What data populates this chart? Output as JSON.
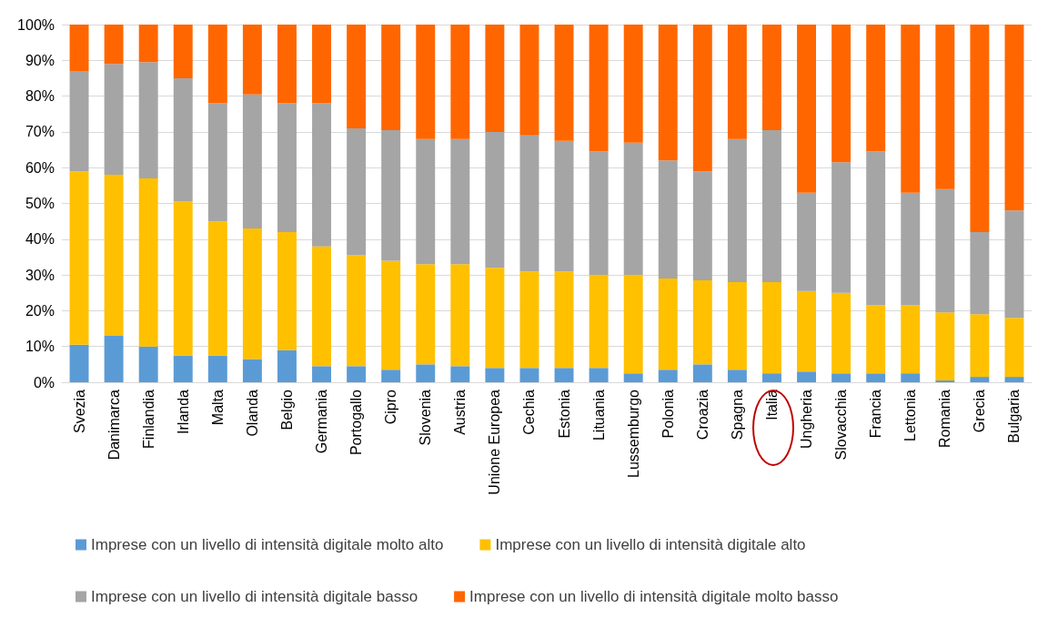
{
  "chart_data": {
    "type": "bar",
    "stacked": true,
    "categories": [
      "Svezia",
      "Danimarca",
      "Finlandia",
      "Irlanda",
      "Malta",
      "Olanda",
      "Belgio",
      "Germania",
      "Portogallo",
      "Cipro",
      "Slovenia",
      "Austria",
      "Unione Europea",
      "Cechia",
      "Estonia",
      "Lituania",
      "Lussemburgo",
      "Polonia",
      "Croazia",
      "Spagna",
      "Italia",
      "Ungheria",
      "Slovacchia",
      "Francia",
      "Lettonia",
      "Romania",
      "Grecia",
      "Bulgaria"
    ],
    "series": [
      {
        "name": "Imprese con un livello di intensità digitale molto alto",
        "color": "#5b9bd5",
        "values": [
          10.5,
          13,
          10,
          7.5,
          7.5,
          6.5,
          9,
          4.5,
          4.5,
          3.5,
          5,
          4.5,
          4,
          4,
          4,
          4,
          2.5,
          3.5,
          5,
          3.5,
          2.5,
          3,
          2.5,
          2.5,
          2.5,
          0.5,
          1.5,
          1.5
        ]
      },
      {
        "name": "Imprese con un livello di intensità digitale alto",
        "color": "#ffc000",
        "values": [
          48.5,
          45,
          47,
          43,
          37.5,
          36.5,
          33,
          33.5,
          31,
          30.5,
          28,
          28.5,
          28,
          27,
          27,
          26,
          27.5,
          25.5,
          23.5,
          24.5,
          25.5,
          22.5,
          22.5,
          19,
          19,
          19,
          17.5,
          16.5
        ]
      },
      {
        "name": "Imprese con un livello di intensità digitale basso",
        "color": "#a5a5a5",
        "values": [
          28,
          31,
          32.5,
          34.5,
          33,
          37.5,
          36,
          40,
          35.5,
          36.5,
          35,
          35,
          38,
          38,
          36.5,
          34.5,
          37,
          33,
          30.5,
          40,
          42.5,
          27.5,
          36.5,
          43,
          31.5,
          34.5,
          23,
          30
        ]
      },
      {
        "name": "Imprese con un livello di intensità digitale molto basso",
        "color": "#ff6600",
        "values": [
          13,
          11,
          10.5,
          15,
          22,
          19.5,
          22,
          22,
          29,
          29.5,
          32,
          32,
          30,
          31,
          32.5,
          35.5,
          33,
          38,
          41,
          32,
          29.5,
          47,
          38.5,
          35.5,
          47,
          46,
          58,
          52
        ]
      }
    ],
    "ylim": [
      0,
      100
    ],
    "yticks": [
      {
        "value": 0,
        "label": "0%"
      },
      {
        "value": 10,
        "label": "10%"
      },
      {
        "value": 20,
        "label": "20%"
      },
      {
        "value": 30,
        "label": "30%"
      },
      {
        "value": 40,
        "label": "40%"
      },
      {
        "value": 50,
        "label": "50%"
      },
      {
        "value": 60,
        "label": "60%"
      },
      {
        "value": 70,
        "label": "70%"
      },
      {
        "value": 80,
        "label": "80%"
      },
      {
        "value": 90,
        "label": "90%"
      },
      {
        "value": 100,
        "label": "100%"
      }
    ],
    "grid": "y",
    "legend": "bottom"
  }
}
